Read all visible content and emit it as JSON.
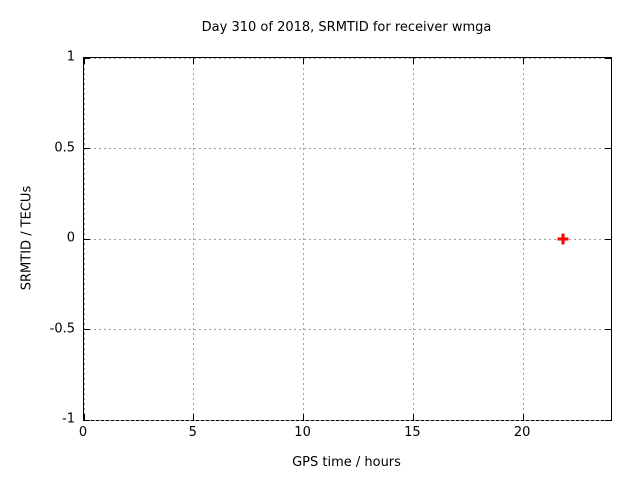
{
  "window": {
    "background": "#ffffff"
  },
  "chart_data": {
    "type": "scatter",
    "title": "Day 310 of 2018, SRMTID for receiver wmga",
    "xlabel": "GPS time / hours",
    "ylabel": "SRMTID / TECUs",
    "xlim": [
      0,
      24
    ],
    "ylim": [
      -1,
      1
    ],
    "xticks": [
      0,
      5,
      10,
      15,
      20
    ],
    "yticks": [
      1,
      0.5,
      0,
      -0.5,
      -1
    ],
    "grid": true,
    "legend": "none",
    "series": [
      {
        "name": "SRMTID",
        "marker": "plus",
        "color": "#ff0000",
        "points": [
          {
            "x": 21.8,
            "y": 0.0
          }
        ]
      }
    ]
  },
  "colors": {
    "axis": "#000000",
    "grid": "#a0a0a0",
    "text": "#000000",
    "marker": "#ff0000",
    "background": "#ffffff"
  }
}
